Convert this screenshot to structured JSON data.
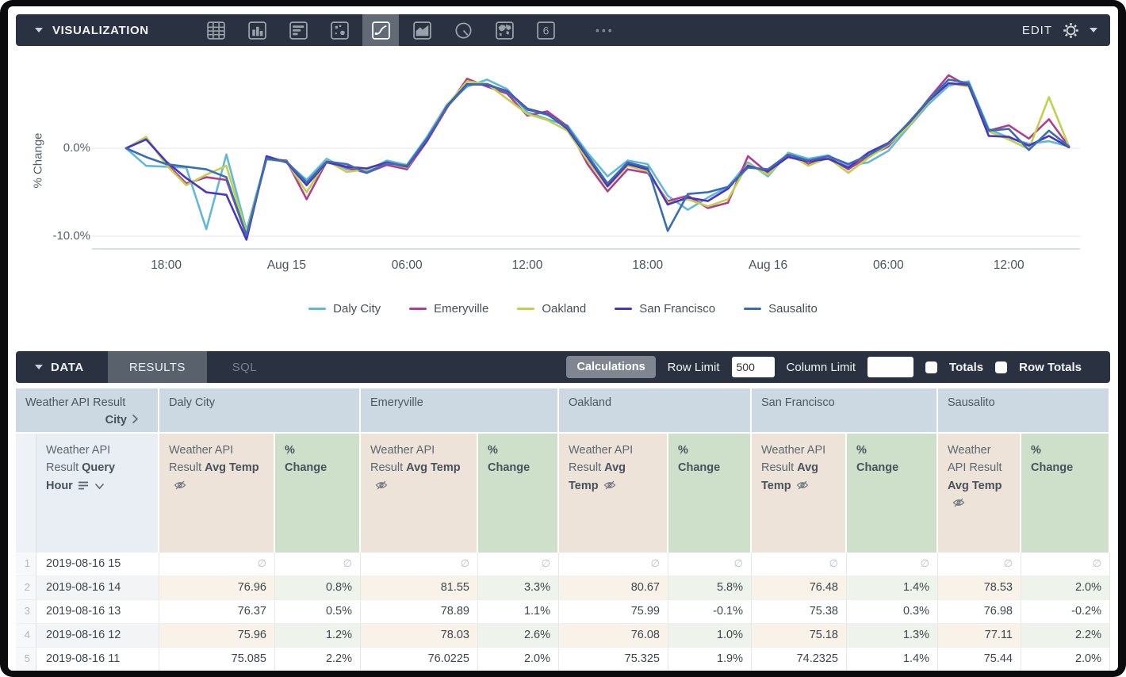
{
  "visualization_bar": {
    "title": "VISUALIZATION",
    "edit_label": "EDIT",
    "icons": [
      {
        "name": "table-icon",
        "selected": false
      },
      {
        "name": "column-chart-icon",
        "selected": false
      },
      {
        "name": "bar-chart-icon",
        "selected": false
      },
      {
        "name": "scatter-chart-icon",
        "selected": false
      },
      {
        "name": "line-chart-icon",
        "selected": true
      },
      {
        "name": "area-chart-icon",
        "selected": false
      },
      {
        "name": "pie-chart-icon",
        "selected": false
      },
      {
        "name": "map-chart-icon",
        "selected": false
      },
      {
        "name": "single-value-icon",
        "selected": false,
        "glyph": "6"
      }
    ],
    "more_icons_label": "•••"
  },
  "chart_data": {
    "type": "line",
    "title": "",
    "xlabel": "",
    "ylabel": "% Change",
    "ylim": [
      -11.5,
      9
    ],
    "grid": "horizontal",
    "legend_position": "bottom",
    "x_description": "Hourly points from 2019-08-14 16:00 to 2019-08-16 15:00",
    "y_ticks": [
      {
        "value": 0,
        "label": "0.0%"
      },
      {
        "value": -10,
        "label": "-10.0%"
      }
    ],
    "x_ticks": [
      {
        "index": 2,
        "label": "18:00"
      },
      {
        "index": 8,
        "label": "Aug 15"
      },
      {
        "index": 14,
        "label": "06:00"
      },
      {
        "index": 20,
        "label": "12:00"
      },
      {
        "index": 26,
        "label": "18:00"
      },
      {
        "index": 32,
        "label": "Aug 16"
      },
      {
        "index": 38,
        "label": "06:00"
      },
      {
        "index": 44,
        "label": "12:00"
      }
    ],
    "series": [
      {
        "name": "Daly City",
        "color": "#62b9d5",
        "values": [
          0,
          -2.0,
          -2.1,
          -2.2,
          -9.2,
          -0.7,
          -9.3,
          -1.1,
          -1.6,
          -3.6,
          -1.2,
          -2.4,
          -2.6,
          -1.4,
          -1.9,
          1.3,
          5.0,
          7.0,
          7.8,
          6.7,
          4.1,
          3.3,
          2.6,
          -0.5,
          -3.2,
          -1.4,
          -1.8,
          -5.4,
          -7.0,
          -5.6,
          -4.4,
          -1.6,
          -3.2,
          -0.5,
          -1.2,
          -0.8,
          -2.0,
          -1.6,
          -0.3,
          2.4,
          5.0,
          7.1,
          7.6,
          2.2,
          1.2,
          0.5,
          0.8,
          0.2
        ]
      },
      {
        "name": "Emeryville",
        "color": "#b03e90",
        "values": [
          0,
          1.2,
          -1.7,
          -4.0,
          -3.3,
          -3.6,
          -9.9,
          -1.2,
          -1.4,
          -5.8,
          -1.5,
          -2.2,
          -2.8,
          -1.9,
          -2.4,
          0.8,
          4.6,
          7.9,
          7.0,
          6.2,
          3.7,
          4.2,
          2.5,
          -1.8,
          -4.9,
          -2.4,
          -2.8,
          -6.0,
          -5.4,
          -6.8,
          -6.2,
          -0.9,
          -2.8,
          -0.8,
          -1.8,
          -1.0,
          -2.4,
          -0.9,
          0.2,
          2.7,
          5.6,
          8.3,
          7.0,
          2.0,
          2.6,
          1.1,
          3.3,
          0.2
        ]
      },
      {
        "name": "Oakland",
        "color": "#c2d14c",
        "values": [
          0,
          1.3,
          -1.9,
          -4.2,
          -3.0,
          -2.0,
          -9.6,
          -1.3,
          -1.5,
          -5.0,
          -1.4,
          -2.7,
          -2.4,
          -1.6,
          -2.2,
          1.0,
          4.9,
          7.6,
          7.3,
          5.6,
          3.9,
          3.2,
          2.0,
          -1.4,
          -4.4,
          -2.0,
          -2.6,
          -6.2,
          -5.8,
          -6.6,
          -5.8,
          -1.8,
          -3.0,
          -0.6,
          -2.0,
          -1.1,
          -2.8,
          -1.1,
          0.4,
          2.5,
          5.3,
          7.4,
          7.0,
          1.9,
          1.0,
          -0.1,
          5.8,
          0.2
        ]
      },
      {
        "name": "San Francisco",
        "color": "#4b34c3",
        "values": [
          0,
          1.0,
          -1.5,
          -3.4,
          -5.0,
          -5.3,
          -10.4,
          -0.9,
          -1.6,
          -4.2,
          -1.6,
          -2.1,
          -2.3,
          -1.6,
          -2.1,
          0.9,
          4.8,
          7.3,
          7.2,
          6.5,
          4.5,
          3.9,
          2.2,
          -1.0,
          -4.3,
          -1.8,
          -2.4,
          -6.4,
          -5.6,
          -6.0,
          -4.6,
          -2.0,
          -2.6,
          -1.0,
          -1.5,
          -1.2,
          -2.2,
          -0.5,
          0.6,
          2.8,
          5.4,
          7.4,
          7.2,
          1.4,
          1.3,
          0.3,
          1.4,
          0.1
        ]
      },
      {
        "name": "Sausalito",
        "color": "#3a6db4",
        "values": [
          0,
          -1.0,
          -1.8,
          -2.1,
          -2.4,
          -3.3,
          -9.9,
          -1.2,
          -1.5,
          -3.9,
          -1.5,
          -1.8,
          -2.8,
          -1.7,
          -2.0,
          1.1,
          4.7,
          7.2,
          7.3,
          6.4,
          4.4,
          3.8,
          2.4,
          -0.8,
          -4.0,
          -1.6,
          -2.2,
          -9.4,
          -5.2,
          -5.0,
          -4.4,
          -2.2,
          -2.4,
          -0.7,
          -1.4,
          -0.9,
          -1.8,
          -0.8,
          0.5,
          2.9,
          5.5,
          7.8,
          7.4,
          2.0,
          2.2,
          -0.2,
          2.0,
          0.2
        ]
      }
    ]
  },
  "data_bar": {
    "title": "DATA",
    "tabs": [
      {
        "label": "RESULTS",
        "active": true
      },
      {
        "label": "SQL",
        "active": false
      }
    ],
    "calculations_label": "Calculations",
    "row_limit_label": "Row Limit",
    "row_limit_value": "500",
    "column_limit_label": "Column Limit",
    "column_limit_value": "",
    "totals_label": "Totals",
    "totals_checked": false,
    "row_totals_label": "Row Totals",
    "row_totals_checked": false
  },
  "table": {
    "corner": {
      "line1": "Weather API Result",
      "line2_bold": "City"
    },
    "cities": [
      "Daly City",
      "Emeryville",
      "Oakland",
      "San Francisco",
      "Sausalito"
    ],
    "hour_header": {
      "prefix": "Weather API Result",
      "bold": "Query Hour"
    },
    "measure_header": {
      "prefix": "Weather API Result",
      "bold": "Avg Temp"
    },
    "pct_header": "% Change",
    "null_symbol": "∅",
    "rows": [
      {
        "num": "1",
        "hour": "2019-08-16 15",
        "cells": [
          null,
          null,
          null,
          null,
          null,
          null,
          null,
          null,
          null,
          null
        ]
      },
      {
        "num": "2",
        "hour": "2019-08-16 14",
        "cells": [
          "76.96",
          "0.8%",
          "81.55",
          "3.3%",
          "80.67",
          "5.8%",
          "76.48",
          "1.4%",
          "78.53",
          "2.0%"
        ]
      },
      {
        "num": "3",
        "hour": "2019-08-16 13",
        "cells": [
          "76.37",
          "0.5%",
          "78.89",
          "1.1%",
          "75.99",
          "-0.1%",
          "75.38",
          "0.3%",
          "76.98",
          "-0.2%"
        ]
      },
      {
        "num": "4",
        "hour": "2019-08-16 12",
        "cells": [
          "75.96",
          "1.2%",
          "78.03",
          "2.6%",
          "76.08",
          "1.0%",
          "75.18",
          "1.3%",
          "77.11",
          "2.2%"
        ]
      },
      {
        "num": "5",
        "hour": "2019-08-16 11",
        "cells": [
          "75.085",
          "2.2%",
          "76.0225",
          "2.0%",
          "75.325",
          "1.9%",
          "74.2325",
          "1.4%",
          "75.44",
          "2.0%"
        ]
      }
    ]
  }
}
